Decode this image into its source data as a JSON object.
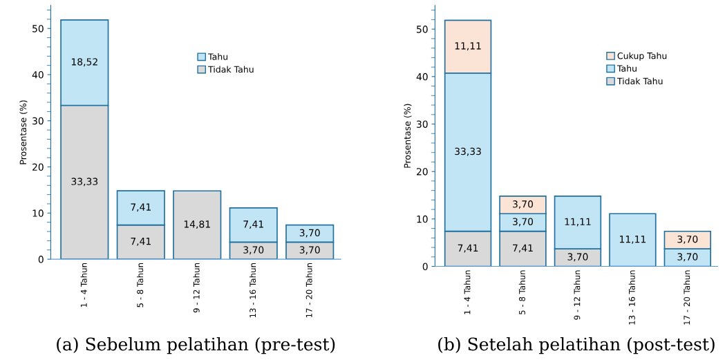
{
  "chart_data": [
    {
      "type": "bar",
      "stacked": true,
      "title": "(a) Sebelum pelatihan (pre-test)",
      "ylabel": "Prosentase (%)",
      "categories": [
        "1 - 4 Tahun",
        "5 - 8 Tahun",
        "9 - 12 Tahun",
        "13 - 16 Tahun",
        "17 - 20 Tahun"
      ],
      "series": [
        {
          "name": "Tidak Tahu",
          "color": "#d9d9d9",
          "values": [
            33.33,
            7.41,
            14.81,
            3.7,
            3.7
          ],
          "value_labels": [
            "33,33",
            "7,41",
            "14,81",
            "3,70",
            "3,70"
          ]
        },
        {
          "name": "Tahu",
          "color": "#c1e5f5",
          "values": [
            18.52,
            7.41,
            null,
            7.41,
            3.7
          ],
          "value_labels": [
            "18,52",
            "7,41",
            null,
            "7,41",
            "3,70"
          ]
        }
      ],
      "ylim": [
        0,
        55
      ],
      "yticks": [
        0,
        10,
        20,
        30,
        40,
        50
      ],
      "legend": "top",
      "grid": false
    },
    {
      "type": "bar",
      "stacked": true,
      "title": "(b) Setelah pelatihan (post-test)",
      "ylabel": "Prosentase (%)",
      "categories": [
        "1 - 4 Tahun",
        "5 - 8 Tahun",
        "9 - 12 Tahun",
        "13 - 16 Tahun",
        "17 - 20 Tahun"
      ],
      "series": [
        {
          "name": "Tidak Tahu",
          "color": "#d9d9d9",
          "values": [
            7.41,
            7.41,
            3.7,
            null,
            null
          ],
          "value_labels": [
            "7,41",
            "7,41",
            "3,70",
            null,
            null
          ]
        },
        {
          "name": "Tahu",
          "color": "#c1e5f5",
          "values": [
            33.33,
            3.7,
            11.11,
            11.11,
            3.7
          ],
          "value_labels": [
            "33,33",
            "3,70",
            "11,11",
            "11,11",
            "3,70"
          ]
        },
        {
          "name": "Cukup Tahu",
          "color": "#fbe3d6",
          "values": [
            11.11,
            3.7,
            null,
            null,
            3.7
          ],
          "value_labels": [
            "11,11",
            "3,70",
            null,
            null,
            "3,70"
          ]
        }
      ],
      "ylim": [
        0,
        55
      ],
      "yticks": [
        0,
        10,
        20,
        30,
        40,
        50
      ],
      "legend": "top right",
      "grid": false
    }
  ]
}
